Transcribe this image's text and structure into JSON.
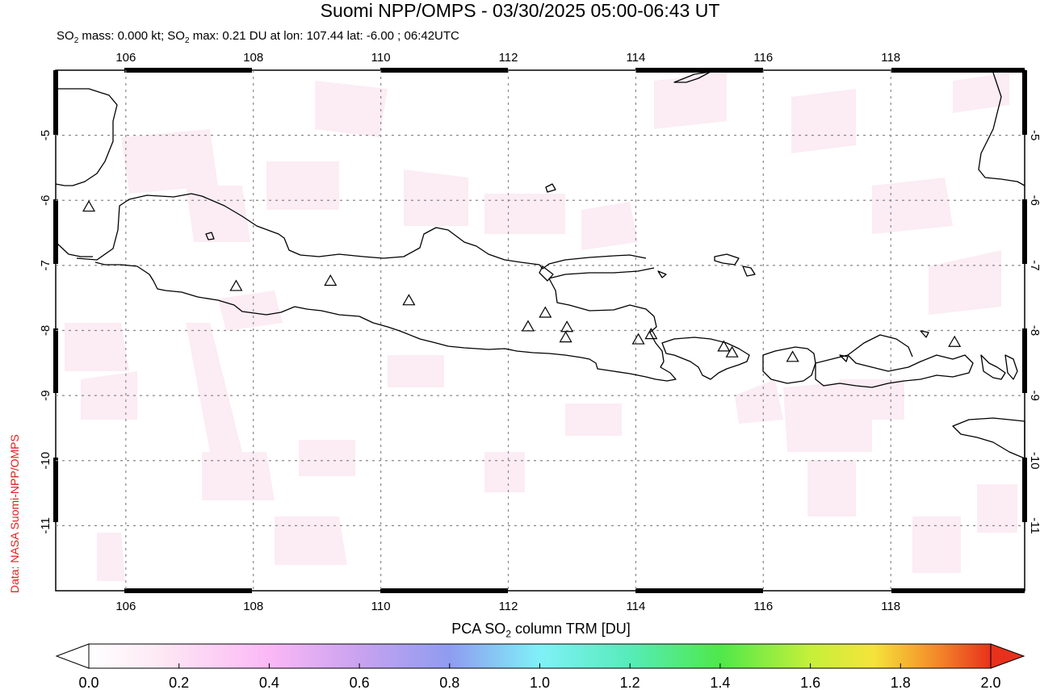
{
  "header": {
    "title": "Suomi NPP/OMPS - 03/30/2025 05:00-06:43 UT",
    "subtitle_prefix": "SO",
    "subtitle_sub": "2",
    "subtitle_mid": " mass: 0.000 kt; SO",
    "subtitle_sub2": "2",
    "subtitle_suffix": " max: 0.21 DU at lon: 107.44 lat: -6.00 ; 06:42UTC"
  },
  "credit": "Data: NASA Suomi-NPP/OMPS",
  "map": {
    "lon_range": [
      104.9,
      120.1
    ],
    "lat_range": [
      -12.0,
      -4.0
    ],
    "lon_ticks": [
      "106",
      "108",
      "110",
      "112",
      "114",
      "116",
      "118"
    ],
    "lat_ticks": [
      "-5",
      "-6",
      "-7",
      "-8",
      "-9",
      "-10",
      "-11"
    ],
    "volcanoes": [
      {
        "lon": 105.42,
        "lat": -6.1
      },
      {
        "lon": 107.73,
        "lat": -7.32
      },
      {
        "lon": 109.21,
        "lat": -7.24
      },
      {
        "lon": 110.44,
        "lat": -7.54
      },
      {
        "lon": 112.31,
        "lat": -7.94
      },
      {
        "lon": 112.58,
        "lat": -7.73
      },
      {
        "lon": 112.92,
        "lat": -7.95
      },
      {
        "lon": 112.9,
        "lat": -8.11
      },
      {
        "lon": 114.04,
        "lat": -8.14
      },
      {
        "lon": 114.24,
        "lat": -8.06
      },
      {
        "lon": 115.38,
        "lat": -8.25
      },
      {
        "lon": 115.51,
        "lat": -8.34
      },
      {
        "lon": 116.46,
        "lat": -8.41
      },
      {
        "lon": 119.0,
        "lat": -8.18
      }
    ]
  },
  "colorbar": {
    "title_prefix": "PCA SO",
    "title_sub": "2",
    "title_suffix": " column TRM [DU]",
    "ticks": [
      "0.0",
      "0.2",
      "0.4",
      "0.6",
      "0.8",
      "1.0",
      "1.2",
      "1.4",
      "1.6",
      "1.8",
      "2.0"
    ],
    "range": [
      0.0,
      2.0
    ]
  }
}
